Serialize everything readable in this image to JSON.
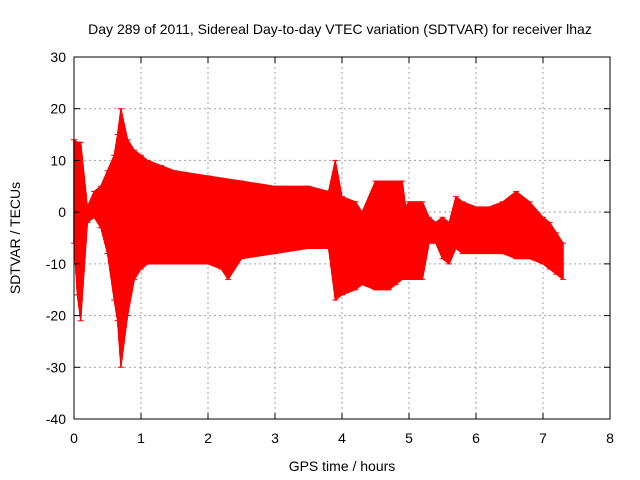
{
  "chart_data": {
    "type": "line",
    "title": "Day 289 of 2011, Sidereal Day-to-day VTEC variation (SDTVAR) for receiver lhaz",
    "xlabel": "GPS time / hours",
    "ylabel": "SDTVAR / TECUs",
    "xlim": [
      0,
      8
    ],
    "ylim": [
      -40,
      30
    ],
    "xticks": [
      "0",
      "1",
      "2",
      "3",
      "4",
      "5",
      "6",
      "7",
      "8"
    ],
    "yticks": [
      "30",
      "20",
      "10",
      "0",
      "-10",
      "-20",
      "-30",
      "-40"
    ],
    "grid": true,
    "color": "#ff0000",
    "series": [
      {
        "name": "upper envelope",
        "x": [
          0.0,
          0.05,
          0.1,
          0.2,
          0.3,
          0.4,
          0.5,
          0.6,
          0.65,
          0.7,
          0.8,
          0.9,
          1.0,
          1.1,
          1.3,
          1.5,
          2.0,
          2.5,
          3.0,
          3.5,
          3.8,
          3.9,
          4.0,
          4.2,
          4.3,
          4.5,
          4.7,
          4.8,
          4.85,
          4.9,
          4.95,
          5.0,
          5.1,
          5.2,
          5.3,
          5.4,
          5.5,
          5.6,
          5.7,
          5.8,
          6.0,
          6.2,
          6.4,
          6.6,
          6.8,
          7.0,
          7.1,
          7.2,
          7.3
        ],
        "values": [
          14,
          13.5,
          13.5,
          1,
          4,
          5,
          8,
          11,
          15,
          20,
          14,
          12,
          11,
          10,
          9,
          8,
          7,
          6,
          5,
          5,
          4,
          10,
          3,
          2,
          0,
          6,
          6,
          6,
          6,
          6,
          1,
          2,
          2,
          2,
          -1,
          -2,
          -1,
          -2,
          3,
          2,
          1,
          1,
          2,
          4,
          2,
          -1,
          -2,
          -4,
          -6
        ]
      },
      {
        "name": "lower envelope",
        "x": [
          0.0,
          0.05,
          0.1,
          0.2,
          0.3,
          0.4,
          0.5,
          0.6,
          0.65,
          0.7,
          0.8,
          0.9,
          1.0,
          1.1,
          1.3,
          1.5,
          2.0,
          2.2,
          2.3,
          2.5,
          3.0,
          3.5,
          3.8,
          3.9,
          4.0,
          4.2,
          4.3,
          4.5,
          4.7,
          4.8,
          4.9,
          5.0,
          5.1,
          5.2,
          5.3,
          5.4,
          5.5,
          5.6,
          5.7,
          5.8,
          6.0,
          6.2,
          6.4,
          6.6,
          6.8,
          7.0,
          7.1,
          7.2,
          7.3
        ],
        "values": [
          -6,
          -16,
          -21,
          -2,
          -1,
          -3,
          -8,
          -17,
          -21,
          -30,
          -20,
          -13,
          -11,
          -10,
          -10,
          -10,
          -10,
          -11,
          -13,
          -9,
          -8,
          -7,
          -7,
          -17,
          -16,
          -15,
          -14,
          -15,
          -15,
          -14,
          -13,
          -13,
          -13,
          -13,
          -6,
          -6,
          -9,
          -10,
          -7,
          -8,
          -8,
          -8,
          -8,
          -9,
          -9,
          -10,
          -11,
          -12,
          -13
        ]
      }
    ]
  }
}
